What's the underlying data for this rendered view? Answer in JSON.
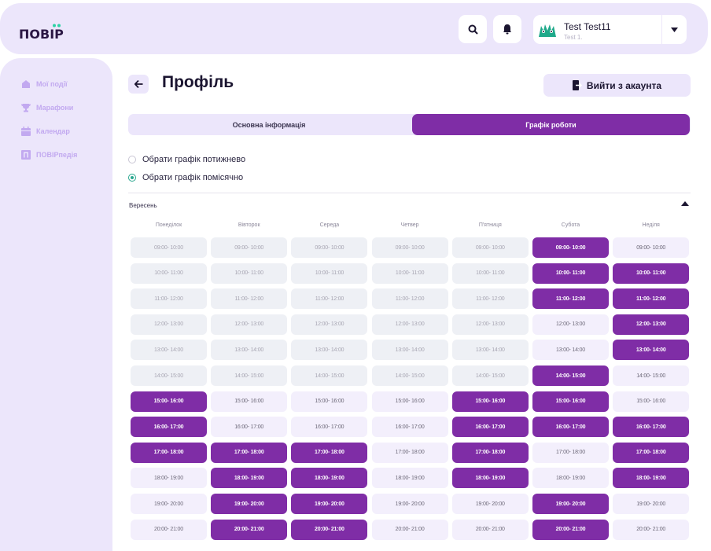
{
  "header": {
    "logo_text": "ПОВІР",
    "search_icon": "search-icon",
    "bell_icon": "bell-icon",
    "user": {
      "name": "Test Test11",
      "subtitle": "Test 1."
    }
  },
  "sidebar": {
    "items": [
      {
        "label": "Мої події",
        "icon": "home-icon"
      },
      {
        "label": "Марафони",
        "icon": "trophy-icon"
      },
      {
        "label": "Календар",
        "icon": "calendar-icon"
      },
      {
        "label": "ПОВІРпедія",
        "icon": "book-icon"
      }
    ]
  },
  "profile": {
    "title": "Профіль",
    "logout_label": "Вийти з акаунта",
    "tabs": [
      {
        "label": "Основна інформація",
        "active": false
      },
      {
        "label": "Графік роботи",
        "active": true
      }
    ]
  },
  "schedule": {
    "options": [
      {
        "label": "Обрати графік потижнево",
        "checked": false
      },
      {
        "label": "Обрати графік помісячно",
        "checked": true
      }
    ],
    "month": "Вересень",
    "days": [
      "Понеділок",
      "Вівторок",
      "Середа",
      "Четвер",
      "П'ятниця",
      "Субота",
      "Неділя"
    ],
    "slots": [
      "09:00- 10:00",
      "10:00- 11:00",
      "11:00- 12:00",
      "12:00- 13:00",
      "13:00- 14:00",
      "14:00- 15:00",
      "15:00- 16:00",
      "16:00- 17:00",
      "17:00- 18:00",
      "18:00- 19:00",
      "19:00- 20:00",
      "20:00- 21:00"
    ],
    "grid": [
      [
        "past",
        "past",
        "past",
        "past",
        "past",
        "sel",
        "free"
      ],
      [
        "past",
        "past",
        "past",
        "past",
        "past",
        "sel",
        "sel"
      ],
      [
        "past",
        "past",
        "past",
        "past",
        "past",
        "sel",
        "sel"
      ],
      [
        "past",
        "past",
        "past",
        "past",
        "past",
        "free",
        "sel"
      ],
      [
        "past",
        "past",
        "past",
        "past",
        "past",
        "free",
        "sel"
      ],
      [
        "past",
        "past",
        "past",
        "past",
        "past",
        "sel",
        "free"
      ],
      [
        "sel",
        "free",
        "free",
        "free",
        "sel",
        "sel",
        "free"
      ],
      [
        "sel",
        "free",
        "free",
        "free",
        "sel",
        "sel",
        "sel"
      ],
      [
        "sel",
        "sel",
        "sel",
        "free",
        "sel",
        "free",
        "sel"
      ],
      [
        "free",
        "sel",
        "sel",
        "free",
        "sel",
        "free",
        "sel"
      ],
      [
        "free",
        "sel",
        "sel",
        "free",
        "free",
        "sel",
        "free"
      ],
      [
        "free",
        "sel",
        "sel",
        "free",
        "free",
        "sel",
        "free"
      ]
    ]
  },
  "colors": {
    "accent": "#7f2da6",
    "soft": "#ece6fb",
    "radio": "#2aa78f"
  }
}
